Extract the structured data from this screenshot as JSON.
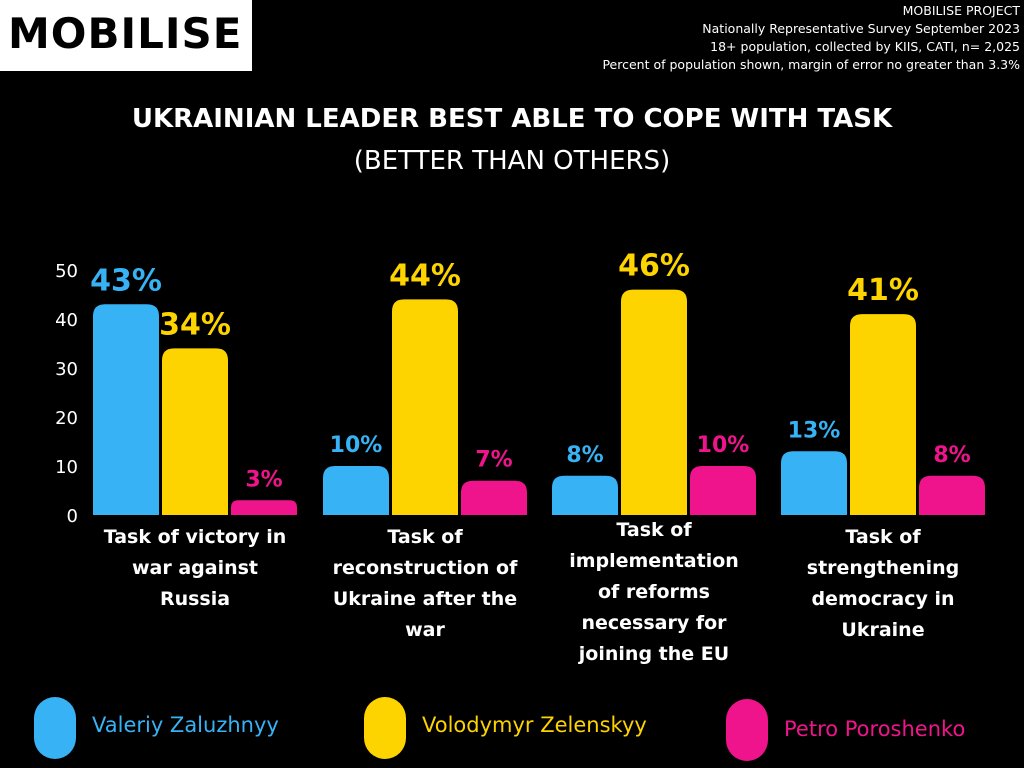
{
  "header": {
    "logo_text": "MOBILISE",
    "meta_lines": [
      "MOBILISE PROJECT",
      "Nationally Representative Survey September 2023",
      "18+ population, collected by KIIS, CATI, n= 2,025",
      "Percent of population shown, margin of error no greater than 3.3%"
    ]
  },
  "colors": {
    "zaluzhnyy": "#37b3f5",
    "zelenskyy": "#fdd300",
    "poroshenko": "#f0148c"
  },
  "chart_data": {
    "type": "bar",
    "title": "UKRAINIAN LEADER BEST ABLE TO COPE WITH TASK",
    "subtitle": "(BETTER THAN OTHERS)",
    "xlabel": "",
    "ylabel": "",
    "ylim": [
      0,
      50
    ],
    "yticks": [
      "0",
      "10",
      "20",
      "30",
      "40",
      "50"
    ],
    "grid": false,
    "legend_position": "bottom",
    "categories": [
      [
        "Task of victory in",
        "war against",
        "Russia"
      ],
      [
        "Task of",
        "reconstruction of",
        "Ukraine after the",
        "war"
      ],
      [
        "Task of",
        "implementation",
        "of reforms",
        "necessary for",
        "joining the EU"
      ],
      [
        "Task of",
        "strengthening",
        "democracy in",
        "Ukraine"
      ]
    ],
    "series": [
      {
        "name": "Valeriy Zaluzhnyy",
        "values": [
          43,
          10,
          8,
          13
        ],
        "labels": [
          "43%",
          "10%",
          "8%",
          "13%"
        ]
      },
      {
        "name": "Volodymyr Zelenskyy",
        "values": [
          34,
          44,
          46,
          41
        ],
        "labels": [
          "34%",
          "44%",
          "46%",
          "41%"
        ]
      },
      {
        "name": "Petro Poroshenko",
        "values": [
          3,
          7,
          10,
          8
        ],
        "labels": [
          "3%",
          "7%",
          "10%",
          "8%"
        ]
      }
    ]
  }
}
